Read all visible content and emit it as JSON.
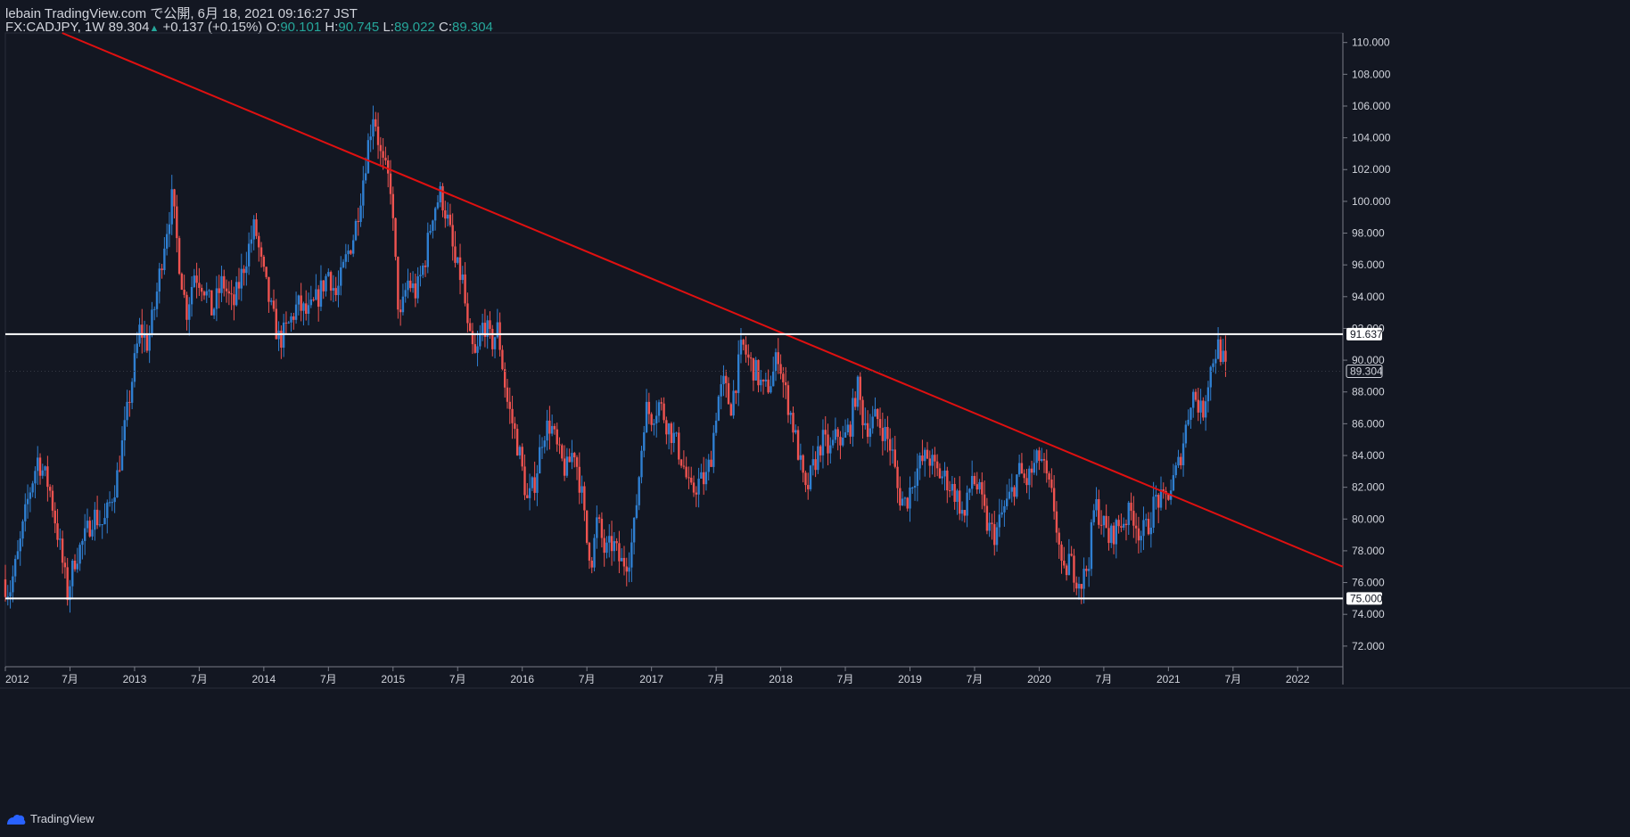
{
  "header": {
    "line1": "lebain TradingView.com で公開, 6月 18, 2021 09:16:27 JST",
    "symbol": "FX:CADJPY, 1W",
    "last": "89.304",
    "change": "+0.137 (+0.15%)",
    "o_label": "O:",
    "o": "90.101",
    "h_label": "H:",
    "h": "90.745",
    "l_label": "L:",
    "l": "89.022",
    "c_label": "C:",
    "c": "89.304"
  },
  "footer": {
    "brand": "TradingView",
    "icon": "tradingview-logo-icon"
  },
  "colors": {
    "background": "#131722",
    "up": "#2f7fd1",
    "down": "#ef5350",
    "trendline": "#e01010",
    "level": "#ffffff",
    "text": "#d1d4dc"
  },
  "chart_data": {
    "type": "candlestick",
    "symbol": "FX:CADJPY",
    "interval": "1W",
    "x_range": [
      2012.0,
      2022.35
    ],
    "ylim": [
      70.7,
      110.6
    ],
    "y_ticks": [
      "72.000",
      "74.000",
      "76.000",
      "78.000",
      "80.000",
      "82.000",
      "84.000",
      "86.000",
      "88.000",
      "90.000",
      "92.000",
      "94.000",
      "96.000",
      "98.000",
      "100.000",
      "102.000",
      "104.000",
      "106.000",
      "108.000",
      "110.000"
    ],
    "x_ticks": [
      {
        "x": 2012.0,
        "label": "2012"
      },
      {
        "x": 2012.5,
        "label": "7月"
      },
      {
        "x": 2013.0,
        "label": "2013"
      },
      {
        "x": 2013.5,
        "label": "7月"
      },
      {
        "x": 2014.0,
        "label": "2014"
      },
      {
        "x": 2014.5,
        "label": "7月"
      },
      {
        "x": 2015.0,
        "label": "2015"
      },
      {
        "x": 2015.5,
        "label": "7月"
      },
      {
        "x": 2016.0,
        "label": "2016"
      },
      {
        "x": 2016.5,
        "label": "7月"
      },
      {
        "x": 2017.0,
        "label": "2017"
      },
      {
        "x": 2017.5,
        "label": "7月"
      },
      {
        "x": 2018.0,
        "label": "2018"
      },
      {
        "x": 2018.5,
        "label": "7月"
      },
      {
        "x": 2019.0,
        "label": "2019"
      },
      {
        "x": 2019.5,
        "label": "7月"
      },
      {
        "x": 2020.0,
        "label": "2020"
      },
      {
        "x": 2020.5,
        "label": "7月"
      },
      {
        "x": 2021.0,
        "label": "2021"
      },
      {
        "x": 2021.5,
        "label": "7月"
      },
      {
        "x": 2022.0,
        "label": "2022"
      }
    ],
    "price_path": [
      [
        2012.0,
        76.2
      ],
      [
        2012.05,
        75.4
      ],
      [
        2012.12,
        77.8
      ],
      [
        2012.2,
        81.5
      ],
      [
        2012.27,
        83.8
      ],
      [
        2012.36,
        82.0
      ],
      [
        2012.43,
        78.8
      ],
      [
        2012.47,
        76.8
      ],
      [
        2012.5,
        75.3
      ],
      [
        2012.56,
        77.6
      ],
      [
        2012.63,
        78.7
      ],
      [
        2012.7,
        80.3
      ],
      [
        2012.78,
        79.6
      ],
      [
        2012.88,
        82.5
      ],
      [
        2012.95,
        86.0
      ],
      [
        2013.0,
        88.8
      ],
      [
        2013.06,
        92.0
      ],
      [
        2013.12,
        91.0
      ],
      [
        2013.18,
        93.6
      ],
      [
        2013.25,
        97.5
      ],
      [
        2013.31,
        100.2
      ],
      [
        2013.36,
        96.5
      ],
      [
        2013.42,
        93.0
      ],
      [
        2013.48,
        95.5
      ],
      [
        2013.55,
        94.8
      ],
      [
        2013.62,
        93.0
      ],
      [
        2013.7,
        95.0
      ],
      [
        2013.78,
        93.3
      ],
      [
        2013.86,
        95.8
      ],
      [
        2013.95,
        98.5
      ],
      [
        2014.0,
        96.0
      ],
      [
        2014.08,
        93.0
      ],
      [
        2014.14,
        91.2
      ],
      [
        2014.2,
        92.0
      ],
      [
        2014.28,
        93.5
      ],
      [
        2014.36,
        92.8
      ],
      [
        2014.44,
        94.0
      ],
      [
        2014.52,
        95.6
      ],
      [
        2014.58,
        94.0
      ],
      [
        2014.66,
        96.5
      ],
      [
        2014.72,
        98.0
      ],
      [
        2014.78,
        101.0
      ],
      [
        2014.83,
        103.8
      ],
      [
        2014.87,
        105.8
      ],
      [
        2014.93,
        102.5
      ],
      [
        2015.0,
        101.0
      ],
      [
        2015.03,
        97.0
      ],
      [
        2015.07,
        92.2
      ],
      [
        2015.13,
        95.0
      ],
      [
        2015.2,
        94.2
      ],
      [
        2015.27,
        96.5
      ],
      [
        2015.33,
        99.5
      ],
      [
        2015.39,
        100.5
      ],
      [
        2015.45,
        98.5
      ],
      [
        2015.5,
        96.0
      ],
      [
        2015.56,
        95.0
      ],
      [
        2015.6,
        91.5
      ],
      [
        2015.66,
        90.0
      ],
      [
        2015.72,
        92.5
      ],
      [
        2015.78,
        91.0
      ],
      [
        2015.83,
        92.0
      ],
      [
        2015.9,
        87.5
      ],
      [
        2015.96,
        85.5
      ],
      [
        2016.0,
        84.0
      ],
      [
        2016.06,
        81.0
      ],
      [
        2016.12,
        82.5
      ],
      [
        2016.18,
        85.5
      ],
      [
        2016.24,
        86.0
      ],
      [
        2016.3,
        84.0
      ],
      [
        2016.36,
        83.0
      ],
      [
        2016.42,
        84.5
      ],
      [
        2016.48,
        81.5
      ],
      [
        2016.52,
        78.5
      ],
      [
        2016.56,
        77.5
      ],
      [
        2016.6,
        80.0
      ],
      [
        2016.66,
        77.8
      ],
      [
        2016.72,
        78.5
      ],
      [
        2016.78,
        77.2
      ],
      [
        2016.84,
        77.5
      ],
      [
        2016.88,
        79.0
      ],
      [
        2016.92,
        82.5
      ],
      [
        2016.97,
        87.0
      ],
      [
        2017.02,
        86.5
      ],
      [
        2017.08,
        87.3
      ],
      [
        2017.14,
        86.0
      ],
      [
        2017.2,
        85.0
      ],
      [
        2017.26,
        83.6
      ],
      [
        2017.32,
        81.5
      ],
      [
        2017.38,
        82.3
      ],
      [
        2017.44,
        82.5
      ],
      [
        2017.48,
        84.0
      ],
      [
        2017.53,
        87.5
      ],
      [
        2017.58,
        88.5
      ],
      [
        2017.63,
        87.0
      ],
      [
        2017.68,
        89.0
      ],
      [
        2017.72,
        91.0
      ],
      [
        2017.77,
        90.0
      ],
      [
        2017.83,
        89.2
      ],
      [
        2017.89,
        88.0
      ],
      [
        2017.95,
        88.8
      ],
      [
        2018.0,
        90.5
      ],
      [
        2018.04,
        88.5
      ],
      [
        2018.1,
        86.5
      ],
      [
        2018.16,
        84.0
      ],
      [
        2018.21,
        81.5
      ],
      [
        2018.28,
        83.5
      ],
      [
        2018.34,
        85.0
      ],
      [
        2018.4,
        84.2
      ],
      [
        2018.46,
        85.4
      ],
      [
        2018.5,
        84.8
      ],
      [
        2018.56,
        86.0
      ],
      [
        2018.61,
        88.5
      ],
      [
        2018.65,
        86.5
      ],
      [
        2018.7,
        85.8
      ],
      [
        2018.76,
        86.4
      ],
      [
        2018.82,
        85.5
      ],
      [
        2018.88,
        84.3
      ],
      [
        2018.93,
        81.5
      ],
      [
        2018.99,
        81.0
      ],
      [
        2019.04,
        82.5
      ],
      [
        2019.1,
        83.5
      ],
      [
        2019.16,
        84.0
      ],
      [
        2019.22,
        83.0
      ],
      [
        2019.3,
        82.5
      ],
      [
        2019.38,
        81.5
      ],
      [
        2019.44,
        80.0
      ],
      [
        2019.5,
        82.8
      ],
      [
        2019.56,
        81.5
      ],
      [
        2019.62,
        79.5
      ],
      [
        2019.68,
        79.0
      ],
      [
        2019.74,
        80.5
      ],
      [
        2019.8,
        81.5
      ],
      [
        2019.86,
        83.0
      ],
      [
        2019.92,
        82.3
      ],
      [
        2019.98,
        83.3
      ],
      [
        2020.03,
        84.0
      ],
      [
        2020.08,
        82.3
      ],
      [
        2020.13,
        81.0
      ],
      [
        2020.17,
        78.5
      ],
      [
        2020.2,
        76.0
      ],
      [
        2020.25,
        77.5
      ],
      [
        2020.3,
        76.5
      ],
      [
        2020.35,
        76.0
      ],
      [
        2020.4,
        77.3
      ],
      [
        2020.45,
        81.0
      ],
      [
        2020.5,
        80.0
      ],
      [
        2020.56,
        78.7
      ],
      [
        2020.62,
        79.5
      ],
      [
        2020.68,
        80.0
      ],
      [
        2020.74,
        80.5
      ],
      [
        2020.8,
        79.0
      ],
      [
        2020.86,
        79.5
      ],
      [
        2020.92,
        81.3
      ],
      [
        2020.98,
        81.0
      ],
      [
        2021.04,
        82.0
      ],
      [
        2021.1,
        83.5
      ],
      [
        2021.16,
        86.0
      ],
      [
        2021.2,
        88.0
      ],
      [
        2021.24,
        87.5
      ],
      [
        2021.28,
        86.5
      ],
      [
        2021.32,
        88.5
      ],
      [
        2021.36,
        90.0
      ],
      [
        2021.4,
        90.9
      ],
      [
        2021.43,
        90.4
      ],
      [
        2021.46,
        89.3
      ]
    ],
    "lines": [
      {
        "name": "trendline",
        "from": {
          "x": 2012.44,
          "y": 110.6
        },
        "to": {
          "x": 2022.35,
          "y": 77.0
        }
      },
      {
        "name": "resistance",
        "y": 91.637
      },
      {
        "name": "support",
        "y": 75.0
      }
    ],
    "price_labels": [
      {
        "name": "resistance-label",
        "value": "91.637",
        "y": 91.637,
        "style": "light"
      },
      {
        "name": "last-price-label",
        "value": "89.304",
        "y": 89.304,
        "style": "dark"
      },
      {
        "name": "support-label",
        "value": "75.000",
        "y": 75.0,
        "style": "light"
      }
    ]
  }
}
